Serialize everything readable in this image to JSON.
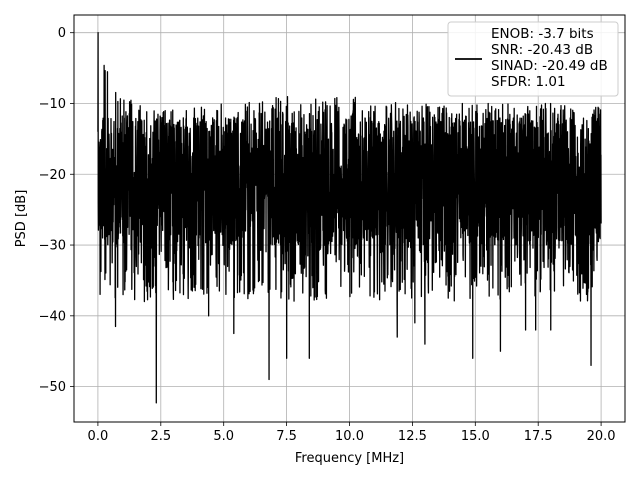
{
  "chart_data": {
    "type": "line",
    "title": "",
    "xlabel": "Frequency [MHz]",
    "ylabel": "PSD [dB]",
    "xlim": [
      -0.95,
      20.95
    ],
    "ylim": [
      -55,
      2.5
    ],
    "xticks": [
      0.0,
      2.5,
      5.0,
      7.5,
      10.0,
      12.5,
      15.0,
      17.5,
      20.0
    ],
    "xtick_labels": [
      "0.0",
      "2.5",
      "5.0",
      "7.5",
      "10.0",
      "12.5",
      "15.0",
      "17.5",
      "20.0"
    ],
    "yticks": [
      0,
      -10,
      -20,
      -30,
      -40,
      -50
    ],
    "ytick_labels": [
      "0",
      "−10",
      "−20",
      "−30",
      "−40",
      "−50"
    ],
    "grid": true,
    "legend": {
      "placement": "top-right",
      "lines": [
        "ENOB: -3.7 bits",
        "SNR: -20.43 dB",
        "SINAD: -20.49 dB",
        "SFDR: 1.01"
      ]
    },
    "series": [
      {
        "color": "#000000",
        "x_range": [
          0,
          20
        ],
        "points": 3000,
        "upper_envelope": [
          [
            0.0,
            0.0
          ],
          [
            0.5,
            -6
          ],
          [
            1.0,
            -9
          ],
          [
            2.5,
            -11
          ],
          [
            5.0,
            -10
          ],
          [
            7.5,
            -9
          ],
          [
            10.0,
            -9
          ],
          [
            12.5,
            -10
          ],
          [
            15.0,
            -10
          ],
          [
            17.5,
            -10
          ],
          [
            20.0,
            -10
          ]
        ],
        "typical_range": [
          -30,
          -12
        ],
        "notable_minima": [
          [
            0.7,
            -41.5
          ],
          [
            1.0,
            -37
          ],
          [
            2.32,
            -52.3
          ],
          [
            3.4,
            -37
          ],
          [
            4.4,
            -40
          ],
          [
            5.4,
            -42.5
          ],
          [
            6.8,
            -49
          ],
          [
            7.5,
            -46
          ],
          [
            8.4,
            -46
          ],
          [
            11.9,
            -43
          ],
          [
            12.6,
            -41
          ],
          [
            13.0,
            -44
          ],
          [
            14.9,
            -46
          ],
          [
            16.0,
            -45
          ],
          [
            17.0,
            -42
          ],
          [
            17.4,
            -42
          ],
          [
            18.0,
            -42
          ],
          [
            19.6,
            -47
          ]
        ]
      }
    ]
  }
}
